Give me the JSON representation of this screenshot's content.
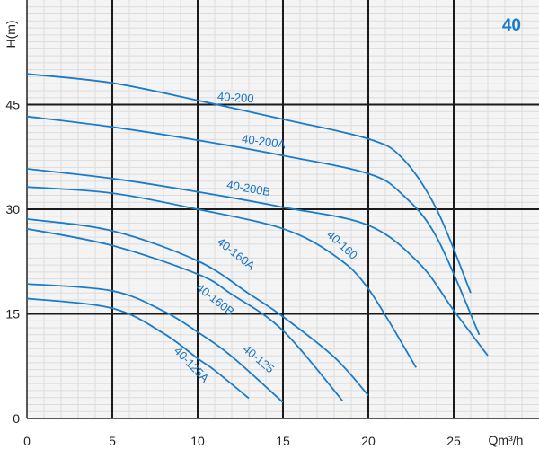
{
  "chart_data": {
    "type": "line",
    "badge": "40",
    "xlabel": "Qm³/h",
    "ylabel": "H(m)",
    "xlim": [
      0,
      30
    ],
    "ylim": [
      0,
      60
    ],
    "x_ticks": [
      0,
      5,
      10,
      15,
      20,
      25
    ],
    "y_ticks": [
      0,
      15,
      30,
      45
    ],
    "grid": "minor every 1 unit horizontal and vertical, major every 5 (x) and 15 (y)",
    "colors": {
      "curve": "#1a7cc9",
      "grid_major": "#1a1a1a",
      "grid_minor": "#dcdcdc",
      "background": "#f4f4f4"
    },
    "series": [
      {
        "name": "40-200",
        "x": [
          0,
          5,
          10,
          15,
          20,
          22,
          24,
          26
        ],
        "y": [
          49.4,
          48.1,
          45.6,
          42.9,
          40.1,
          37.3,
          30.0,
          18.0
        ]
      },
      {
        "name": "40-200A",
        "x": [
          0,
          5,
          10,
          15,
          20,
          22,
          24,
          26.5
        ],
        "y": [
          43.3,
          41.8,
          39.9,
          37.7,
          35.1,
          32.1,
          26.0,
          12.0
        ]
      },
      {
        "name": "40-200B",
        "x": [
          0,
          5,
          10,
          15,
          20,
          23,
          25,
          27
        ],
        "y": [
          35.8,
          34.4,
          32.5,
          30.3,
          27.7,
          22.2,
          15.5,
          9.0
        ]
      },
      {
        "name": "40-160",
        "x": [
          0,
          5,
          10,
          15,
          18,
          20,
          22.8
        ],
        "y": [
          33.2,
          32.3,
          30.0,
          27.2,
          23.4,
          18.6,
          7.3
        ]
      },
      {
        "name": "40-160A",
        "x": [
          0,
          5,
          10,
          13,
          15,
          18,
          20
        ],
        "y": [
          28.6,
          26.9,
          22.6,
          17.9,
          14.6,
          8.8,
          3.3
        ]
      },
      {
        "name": "40-160B",
        "x": [
          0,
          5,
          10,
          12,
          15,
          18.5
        ],
        "y": [
          27.2,
          24.8,
          20.7,
          17.8,
          12.6,
          2.5
        ]
      },
      {
        "name": "40-125",
        "x": [
          0,
          5,
          8,
          10,
          12,
          15
        ],
        "y": [
          19.3,
          18.3,
          15.4,
          12.4,
          8.9,
          2.3
        ]
      },
      {
        "name": "40-125A",
        "x": [
          0,
          5,
          8,
          10,
          11,
          13
        ],
        "y": [
          17.2,
          15.8,
          12.2,
          8.6,
          6.9,
          2.9
        ]
      }
    ]
  }
}
